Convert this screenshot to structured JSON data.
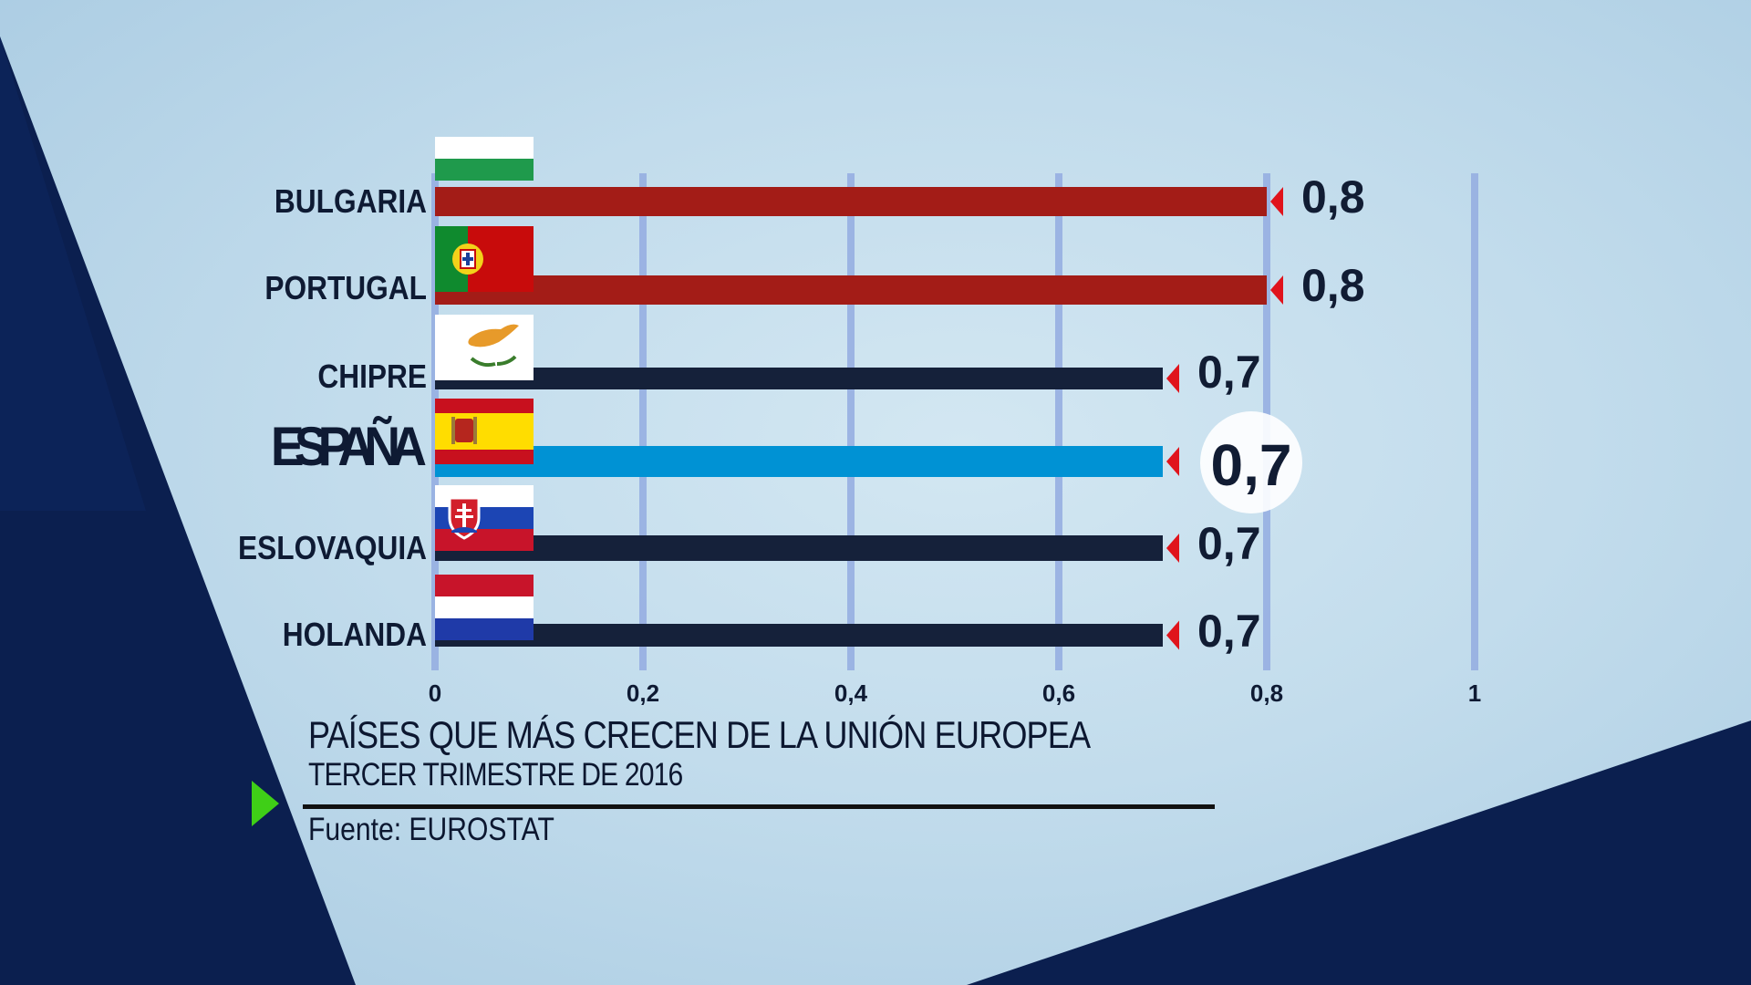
{
  "colors": {
    "bar_red": "#a31c17",
    "bar_dark": "#15213a",
    "bar_highlight": "#0092d4",
    "marker_red": "#e0141c",
    "grid_line": "#93abe0",
    "play_green": "#3fcf17",
    "corner_navy": "#0b1f4f"
  },
  "chart_data": {
    "type": "bar",
    "orientation": "horizontal",
    "categories": [
      "BULGARIA",
      "PORTUGAL",
      "CHIPRE",
      "ESPAÑA",
      "ESLOVAQUIA",
      "HOLANDA"
    ],
    "values": [
      0.8,
      0.8,
      0.7,
      0.7,
      0.7,
      0.7
    ],
    "value_labels": [
      "0,8",
      "0,8",
      "0,7",
      "0,7",
      "0,7",
      "0,7"
    ],
    "bar_colors": [
      "#a31c17",
      "#a31c17",
      "#15213a",
      "#0092d4",
      "#15213a",
      "#15213a"
    ],
    "highlight": "ESPAÑA",
    "flags": [
      "flag-bulgaria-icon",
      "flag-portugal-icon",
      "flag-cyprus-icon",
      "flag-spain-icon",
      "flag-slovakia-icon",
      "flag-netherlands-icon"
    ],
    "xlim": [
      0,
      1
    ],
    "x_ticks": [
      0,
      0.2,
      0.4,
      0.6,
      0.8,
      1
    ],
    "x_tick_labels": [
      "0",
      "0,2",
      "0,4",
      "0,6",
      "0,8",
      "1"
    ],
    "grid": true,
    "title": "PAÍSES QUE MÁS CRECEN DE LA UNIÓN EUROPEA",
    "subtitle": "TERCER TRIMESTRE DE 2016",
    "xlabel": "",
    "ylabel": ""
  },
  "caption": {
    "title": "PAÍSES QUE MÁS CRECEN DE LA UNIÓN EUROPEA",
    "subtitle": "TERCER TRIMESTRE DE 2016",
    "source": "Fuente: EUROSTAT"
  }
}
